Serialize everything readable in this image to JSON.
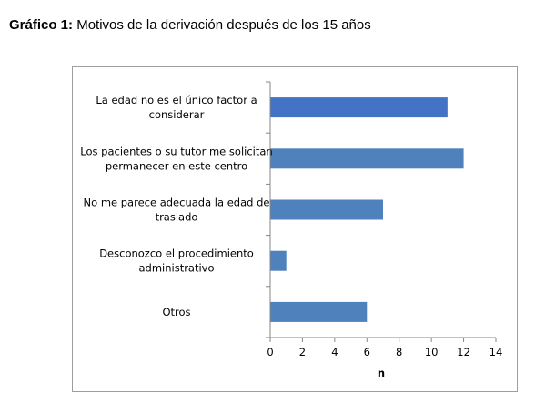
{
  "heading": {
    "prefix": "Gráfico 1:",
    "text": " Motivos de la derivación después de los 15 años"
  },
  "chart_data": {
    "type": "bar",
    "orientation": "horizontal",
    "categories": [
      [
        "La edad no es el único factor a",
        "considerar"
      ],
      [
        "Los pacientes o su tutor me solicitan",
        "permanecer en este centro"
      ],
      [
        "No me parece adecuada la edad de",
        "traslado"
      ],
      [
        "Desconozco el procedimiento",
        "administrativo"
      ],
      [
        "Otros"
      ]
    ],
    "values": [
      11,
      12,
      7,
      1,
      6
    ],
    "xlabel": "n",
    "ylabel": "",
    "xlim": [
      0,
      14
    ],
    "xticks": [
      0,
      2,
      4,
      6,
      8,
      10,
      12,
      14
    ],
    "grid": false,
    "legend": "none",
    "colors": [
      "#4472C4",
      "#4F81BD",
      "#4F81BD",
      "#4F81BD",
      "#4F81BD"
    ],
    "axis_color": "#868686"
  }
}
